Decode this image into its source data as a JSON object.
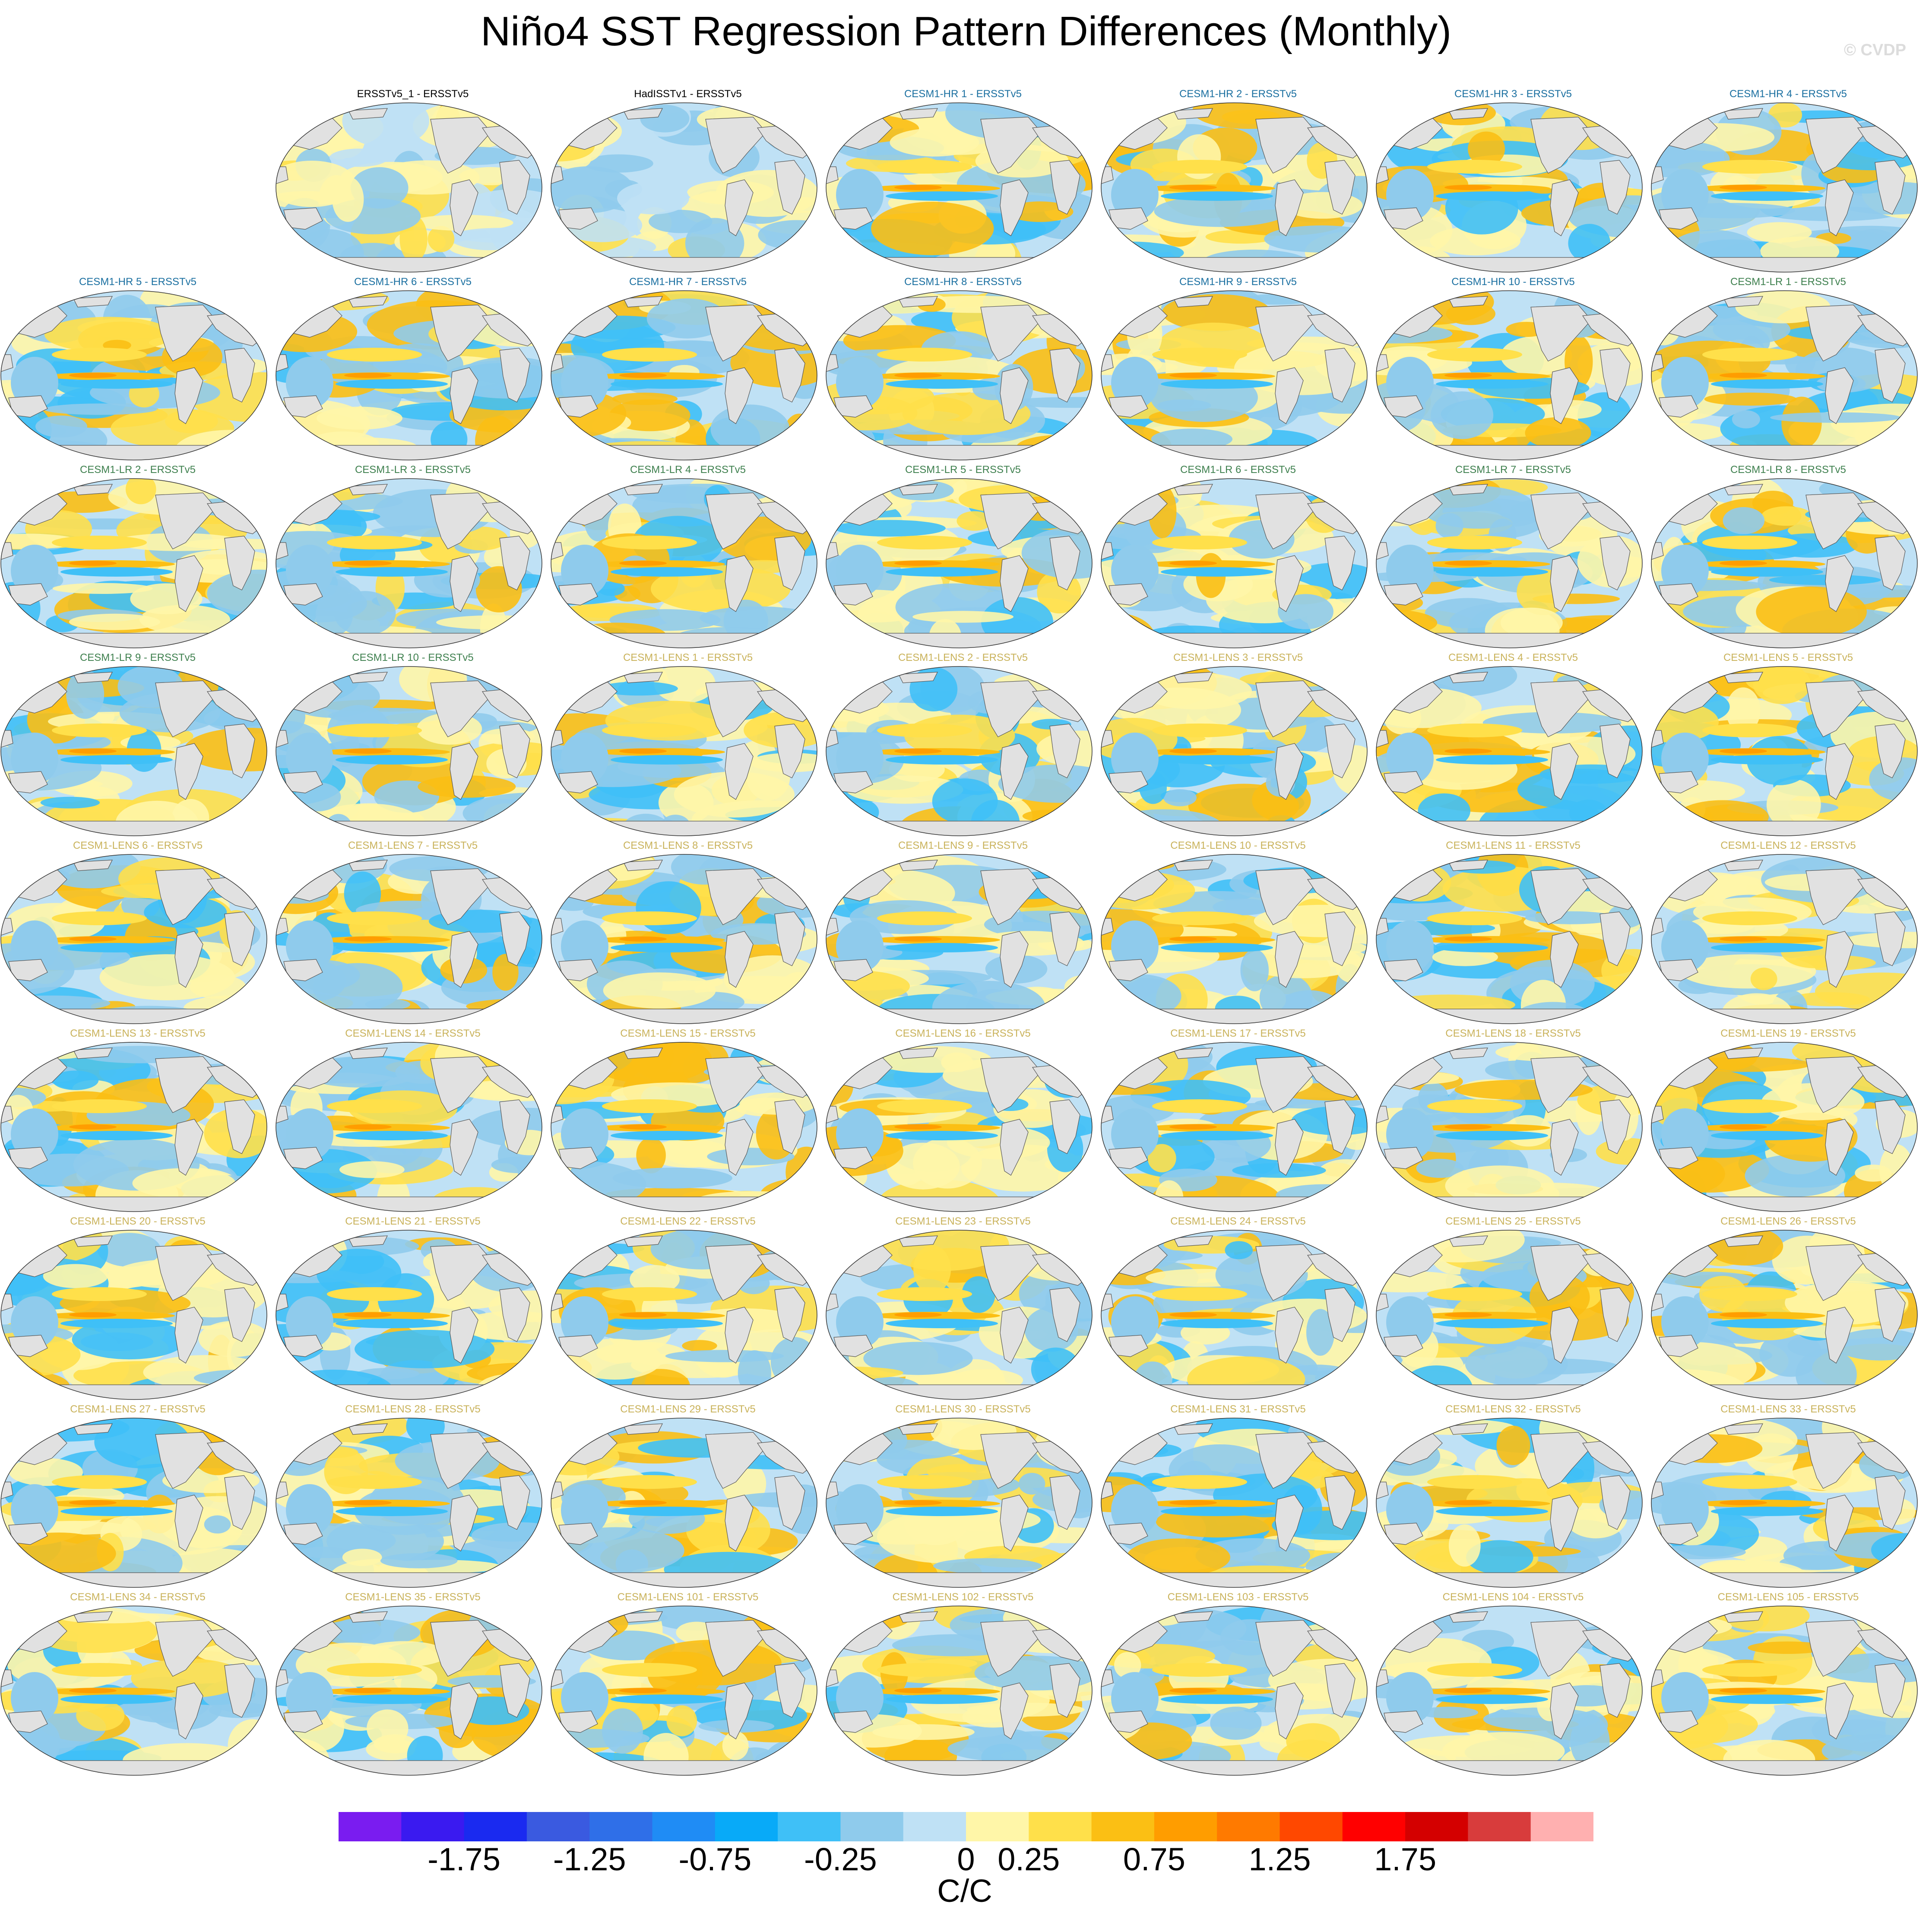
{
  "figure": {
    "title": "Niño4 SST Regression Pattern Differences (Monthly)",
    "credit": "© CVDP"
  },
  "panel_colors": {
    "obs": "#000000",
    "hr": "#1a6fa0",
    "lr": "#3d7f4d",
    "lens": "#c9b25a"
  },
  "land_color": "#e1e1e1",
  "chart_data": {
    "type": "heatmap",
    "description_units": "C/C",
    "panels": [
      {
        "label": "ERSSTv5_1 - ERSSTv5",
        "group": "obs"
      },
      {
        "label": "HadISSTv1 - ERSSTv5",
        "group": "obs"
      },
      {
        "label": "CESM1-HR 1 - ERSSTv5",
        "group": "hr"
      },
      {
        "label": "CESM1-HR 2 - ERSSTv5",
        "group": "hr"
      },
      {
        "label": "CESM1-HR 3 - ERSSTv5",
        "group": "hr"
      },
      {
        "label": "CESM1-HR 4 - ERSSTv5",
        "group": "hr"
      },
      {
        "label": "CESM1-HR 5 - ERSSTv5",
        "group": "hr"
      },
      {
        "label": "CESM1-HR 6 - ERSSTv5",
        "group": "hr"
      },
      {
        "label": "CESM1-HR 7 - ERSSTv5",
        "group": "hr"
      },
      {
        "label": "CESM1-HR 8 - ERSSTv5",
        "group": "hr"
      },
      {
        "label": "CESM1-HR 9 - ERSSTv5",
        "group": "hr"
      },
      {
        "label": "CESM1-HR 10 - ERSSTv5",
        "group": "hr"
      },
      {
        "label": "CESM1-LR 1 - ERSSTv5",
        "group": "lr"
      },
      {
        "label": "CESM1-LR 2 - ERSSTv5",
        "group": "lr"
      },
      {
        "label": "CESM1-LR 3 - ERSSTv5",
        "group": "lr"
      },
      {
        "label": "CESM1-LR 4 - ERSSTv5",
        "group": "lr"
      },
      {
        "label": "CESM1-LR 5 - ERSSTv5",
        "group": "lr"
      },
      {
        "label": "CESM1-LR 6 - ERSSTv5",
        "group": "lr"
      },
      {
        "label": "CESM1-LR 7 - ERSSTv5",
        "group": "lr"
      },
      {
        "label": "CESM1-LR 8 - ERSSTv5",
        "group": "lr"
      },
      {
        "label": "CESM1-LR 9 - ERSSTv5",
        "group": "lr"
      },
      {
        "label": "CESM1-LR 10 - ERSSTv5",
        "group": "lr"
      },
      {
        "label": "CESM1-LENS 1 - ERSSTv5",
        "group": "lens"
      },
      {
        "label": "CESM1-LENS 2 - ERSSTv5",
        "group": "lens"
      },
      {
        "label": "CESM1-LENS 3 - ERSSTv5",
        "group": "lens"
      },
      {
        "label": "CESM1-LENS 4 - ERSSTv5",
        "group": "lens"
      },
      {
        "label": "CESM1-LENS 5 - ERSSTv5",
        "group": "lens"
      },
      {
        "label": "CESM1-LENS 6 - ERSSTv5",
        "group": "lens"
      },
      {
        "label": "CESM1-LENS 7 - ERSSTv5",
        "group": "lens"
      },
      {
        "label": "CESM1-LENS 8 - ERSSTv5",
        "group": "lens"
      },
      {
        "label": "CESM1-LENS 9 - ERSSTv5",
        "group": "lens"
      },
      {
        "label": "CESM1-LENS 10 - ERSSTv5",
        "group": "lens"
      },
      {
        "label": "CESM1-LENS 11 - ERSSTv5",
        "group": "lens"
      },
      {
        "label": "CESM1-LENS 12 - ERSSTv5",
        "group": "lens"
      },
      {
        "label": "CESM1-LENS 13 - ERSSTv5",
        "group": "lens"
      },
      {
        "label": "CESM1-LENS 14 - ERSSTv5",
        "group": "lens"
      },
      {
        "label": "CESM1-LENS 15 - ERSSTv5",
        "group": "lens"
      },
      {
        "label": "CESM1-LENS 16 - ERSSTv5",
        "group": "lens"
      },
      {
        "label": "CESM1-LENS 17 - ERSSTv5",
        "group": "lens"
      },
      {
        "label": "CESM1-LENS 18 - ERSSTv5",
        "group": "lens"
      },
      {
        "label": "CESM1-LENS 19 - ERSSTv5",
        "group": "lens"
      },
      {
        "label": "CESM1-LENS 20 - ERSSTv5",
        "group": "lens"
      },
      {
        "label": "CESM1-LENS 21 - ERSSTv5",
        "group": "lens"
      },
      {
        "label": "CESM1-LENS 22 - ERSSTv5",
        "group": "lens"
      },
      {
        "label": "CESM1-LENS 23 - ERSSTv5",
        "group": "lens"
      },
      {
        "label": "CESM1-LENS 24 - ERSSTv5",
        "group": "lens"
      },
      {
        "label": "CESM1-LENS 25 - ERSSTv5",
        "group": "lens"
      },
      {
        "label": "CESM1-LENS 26 - ERSSTv5",
        "group": "lens"
      },
      {
        "label": "CESM1-LENS 27 - ERSSTv5",
        "group": "lens"
      },
      {
        "label": "CESM1-LENS 28 - ERSSTv5",
        "group": "lens"
      },
      {
        "label": "CESM1-LENS 29 - ERSSTv5",
        "group": "lens"
      },
      {
        "label": "CESM1-LENS 30 - ERSSTv5",
        "group": "lens"
      },
      {
        "label": "CESM1-LENS 31 - ERSSTv5",
        "group": "lens"
      },
      {
        "label": "CESM1-LENS 32 - ERSSTv5",
        "group": "lens"
      },
      {
        "label": "CESM1-LENS 33 - ERSSTv5",
        "group": "lens"
      },
      {
        "label": "CESM1-LENS 34 - ERSSTv5",
        "group": "lens"
      },
      {
        "label": "CESM1-LENS 35 - ERSSTv5",
        "group": "lens"
      },
      {
        "label": "CESM1-LENS 101 - ERSSTv5",
        "group": "lens"
      },
      {
        "label": "CESM1-LENS 102 - ERSSTv5",
        "group": "lens"
      },
      {
        "label": "CESM1-LENS 103 - ERSSTv5",
        "group": "lens"
      },
      {
        "label": "CESM1-LENS 104 - ERSSTv5",
        "group": "lens"
      },
      {
        "label": "CESM1-LENS 105 - ERSSTv5",
        "group": "lens"
      }
    ],
    "colorbar": {
      "units": "C/C",
      "colors": [
        "#7a1cf0",
        "#3a1af0",
        "#1a2af0",
        "#3a5ae0",
        "#2f6fe8",
        "#1f8cf5",
        "#08aaf8",
        "#3fc0f7",
        "#8fcbec",
        "#bfe1f5",
        "#fff6a8",
        "#ffe04a",
        "#fbbf14",
        "#ff9d00",
        "#ff7a00",
        "#ff4800",
        "#ff0000",
        "#d40000",
        "#d83c3c",
        "#ffb0b0"
      ],
      "tick_labels": [
        "-1.75",
        "-1.25",
        "-0.75",
        "-0.25",
        "0",
        "0.25",
        "0.75",
        "1.25",
        "1.75"
      ],
      "tick_boundaries": [
        2,
        4,
        6,
        8,
        10,
        11,
        13,
        15,
        17
      ]
    }
  }
}
